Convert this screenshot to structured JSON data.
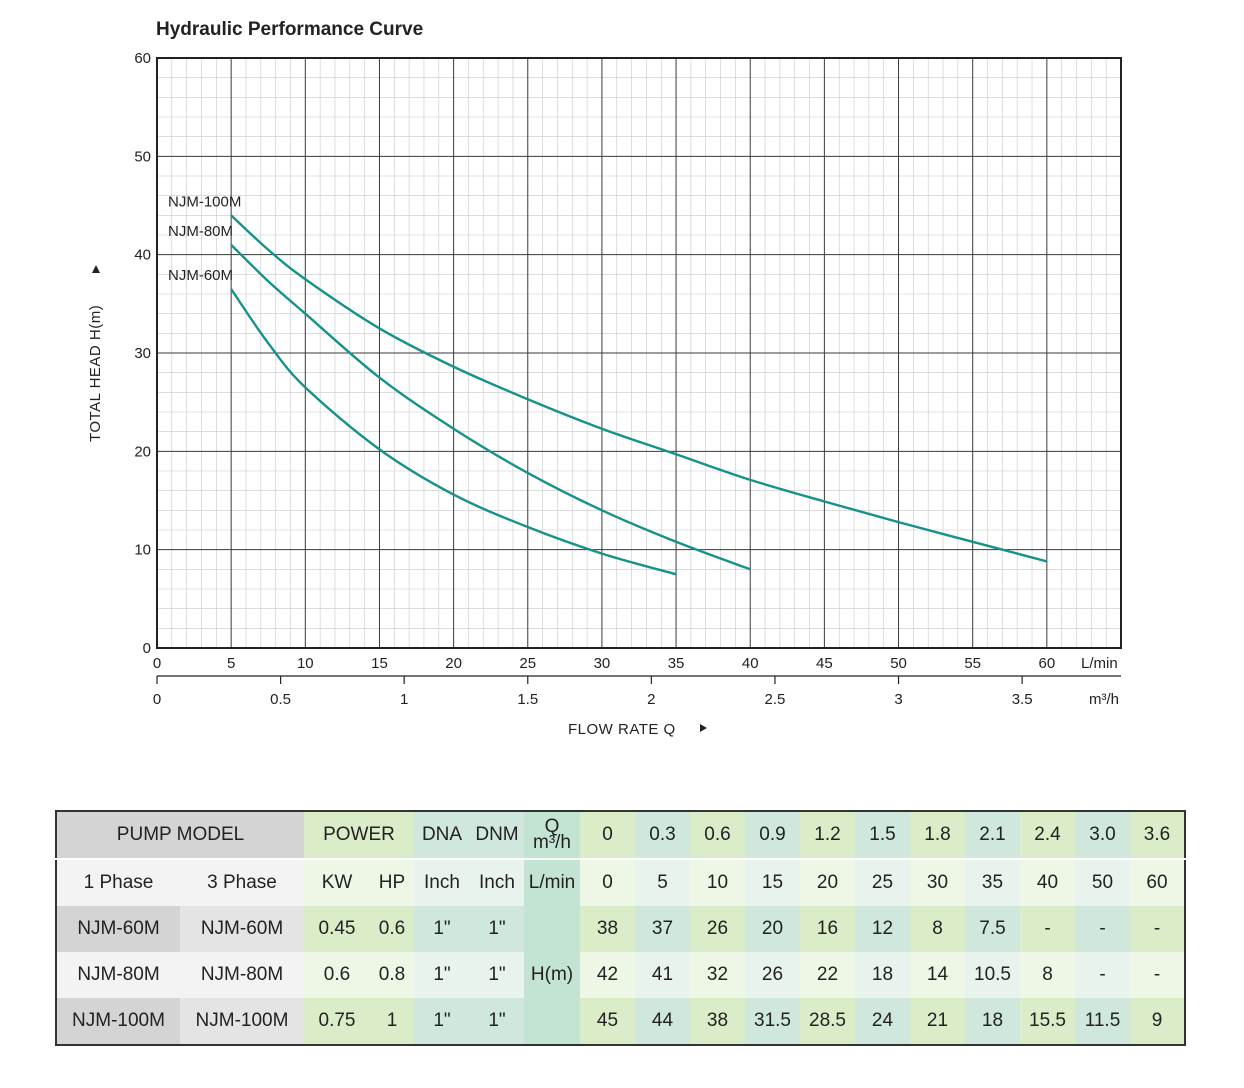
{
  "chart_data": {
    "type": "line",
    "title": "Hydraulic Performance Curve",
    "ylabel": "TOTAL HEAD H(m)",
    "xlabel": "FLOW RATE Q",
    "ylim": [
      0,
      60
    ],
    "xlim": [
      0,
      65
    ],
    "yticks": [
      "0",
      "10",
      "20",
      "30",
      "40",
      "50",
      "60"
    ],
    "xticks_lmin": [
      "0",
      "5",
      "10",
      "15",
      "20",
      "25",
      "30",
      "35",
      "40",
      "45",
      "50",
      "55",
      "60"
    ],
    "x_unit_lmin": "L/min",
    "x2_ticks": [
      {
        "value": 0,
        "label": "0"
      },
      {
        "value": 0.5,
        "label": "0.5"
      },
      {
        "value": 1,
        "label": "1"
      },
      {
        "value": 1.5,
        "label": "1.5"
      },
      {
        "value": 2,
        "label": "2"
      },
      {
        "value": 2.5,
        "label": "2.5"
      },
      {
        "value": 3,
        "label": "3"
      },
      {
        "value": 3.5,
        "label": "3.5"
      }
    ],
    "x2_unit": "m³/h",
    "grid": true,
    "series": [
      {
        "name": "NJM-100M",
        "x": [
          5,
          7.5,
          10,
          15,
          20,
          25,
          30,
          35,
          40,
          45,
          50,
          55,
          60
        ],
        "y": [
          44,
          40.5,
          37.5,
          32.5,
          28.6,
          25.3,
          22.3,
          19.7,
          17.1,
          14.9,
          12.8,
          10.8,
          8.8
        ]
      },
      {
        "name": "NJM-80M",
        "x": [
          5,
          7.5,
          10,
          15,
          20,
          25,
          30,
          35,
          40
        ],
        "y": [
          41,
          37.3,
          34,
          27.5,
          22.3,
          17.8,
          14,
          10.8,
          8
        ]
      },
      {
        "name": "NJM-60M",
        "x": [
          5,
          7.5,
          10,
          15,
          20,
          25,
          30,
          35
        ],
        "y": [
          36.5,
          31,
          26.5,
          20.2,
          15.6,
          12.3,
          9.6,
          7.5
        ]
      }
    ],
    "series_color": "#15938a"
  },
  "table": {
    "head1": {
      "pump_model": "PUMP MODEL",
      "power": "POWER",
      "dna": "DNA",
      "dnm": "DNM",
      "q_top": "Q",
      "q_bottom": "m³/h",
      "q_values": [
        "0",
        "0.3",
        "0.6",
        "0.9",
        "1.2",
        "1.5",
        "1.8",
        "2.1",
        "2.4",
        "3.0",
        "3.6"
      ]
    },
    "head2": {
      "phase1": "1 Phase",
      "phase3": "3 Phase",
      "kw": "KW",
      "hp": "HP",
      "inch_a": "Inch",
      "inch_b": "Inch",
      "lmin": "L/min",
      "l_values": [
        "0",
        "5",
        "10",
        "15",
        "20",
        "25",
        "30",
        "35",
        "40",
        "50",
        "60"
      ]
    },
    "hm_label": "H(m)",
    "rows": [
      {
        "model1": "NJM-60M",
        "model3": "NJM-60M",
        "kw": "0.45",
        "hp": "0.6",
        "dna": "1\"",
        "dnm": "1\"",
        "h": [
          "38",
          "37",
          "26",
          "20",
          "16",
          "12",
          "8",
          "7.5",
          "-",
          "-",
          "-"
        ]
      },
      {
        "model1": "NJM-80M",
        "model3": "NJM-80M",
        "kw": "0.6",
        "hp": "0.8",
        "dna": "1\"",
        "dnm": "1\"",
        "h": [
          "42",
          "41",
          "32",
          "26",
          "22",
          "18",
          "14",
          "10.5",
          "8",
          "-",
          "-"
        ]
      },
      {
        "model1": "NJM-100M",
        "model3": "NJM-100M",
        "kw": "0.75",
        "hp": "1",
        "dna": "1\"",
        "dnm": "1\"",
        "h": [
          "45",
          "44",
          "38",
          "31.5",
          "28.5",
          "24",
          "21",
          "18",
          "15.5",
          "11.5",
          "9"
        ]
      }
    ]
  }
}
